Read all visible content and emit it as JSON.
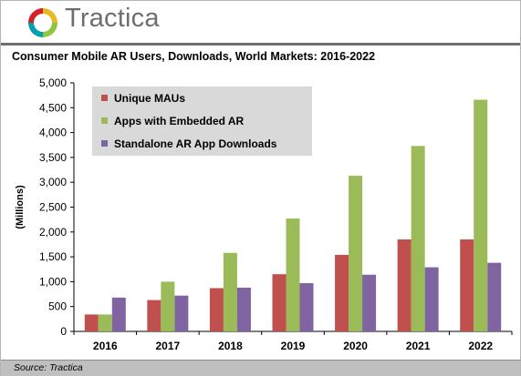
{
  "brand": {
    "name": "Tractica",
    "logo_colors": [
      "#e8b923",
      "#8dc63f",
      "#00a0b0",
      "#d2232a"
    ]
  },
  "source": "Source: Tractica",
  "chart_data": {
    "type": "bar",
    "title": "Consumer Mobile AR Users, Downloads, World Markets: 2016-2022",
    "xlabel": "",
    "ylabel": "(Millions)",
    "ylim": [
      0,
      5000
    ],
    "yticks": [
      0,
      500,
      1000,
      1500,
      2000,
      2500,
      3000,
      3500,
      4000,
      4500,
      5000
    ],
    "ytick_labels": [
      "0",
      "500",
      "1,000",
      "1,500",
      "2,000",
      "2,500",
      "3,000",
      "3,500",
      "4,000",
      "4,500",
      "5,000"
    ],
    "categories": [
      "2016",
      "2017",
      "2018",
      "2019",
      "2020",
      "2021",
      "2022"
    ],
    "grid": false,
    "legend_position": "top-left",
    "series": [
      {
        "name": "Unique MAUs",
        "color": "#c0504d",
        "values": [
          340,
          630,
          870,
          1150,
          1540,
          1850,
          1850
        ]
      },
      {
        "name": "Apps with Embedded AR",
        "color": "#9bbb59",
        "values": [
          340,
          1000,
          1580,
          2270,
          3130,
          3730,
          4660
        ]
      },
      {
        "name": "Standalone AR App Downloads",
        "color": "#8064a2",
        "values": [
          680,
          720,
          880,
          970,
          1140,
          1290,
          1380
        ]
      }
    ]
  }
}
